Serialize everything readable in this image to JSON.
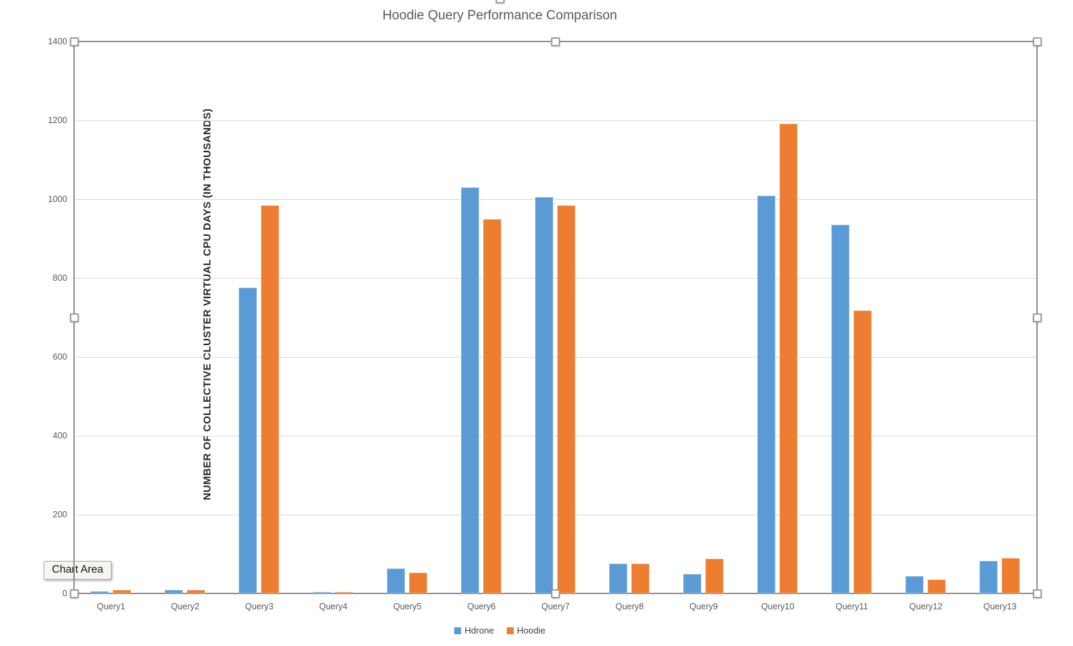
{
  "chart_data": {
    "type": "bar",
    "title": "Hoodie Query Performance Comparison",
    "ylabel": "NUMBER OF COLLECTIVE CLUSTER VIRTUAL CPU DAYS (IN THOUSANDS)",
    "xlabel": "",
    "categories": [
      "Query1",
      "Query2",
      "Query3",
      "Query4",
      "Query5",
      "Query6",
      "Query7",
      "Query8",
      "Query9",
      "Query10",
      "Query11",
      "Query12",
      "Query13"
    ],
    "series": [
      {
        "name": "Hdrone",
        "color": "#5B9BD5",
        "values": [
          5,
          8,
          775,
          4,
          64,
          1030,
          1005,
          75,
          50,
          1008,
          935,
          44,
          82
        ]
      },
      {
        "name": "Hoodie",
        "color": "#ED7D31",
        "values": [
          8,
          8,
          985,
          4,
          52,
          950,
          985,
          75,
          87,
          1192,
          717,
          35,
          89
        ]
      }
    ],
    "ylim": [
      0,
      1400
    ],
    "yticks": [
      0,
      200,
      400,
      600,
      800,
      1000,
      1200,
      1400
    ],
    "grid": "horizontal",
    "legend_position": "bottom-center"
  },
  "ui": {
    "tooltip": {
      "label": "Chart Area"
    },
    "selection": {
      "handles": [
        "top-left",
        "top-center",
        "top-right",
        "middle-left",
        "middle-right",
        "bottom-left",
        "bottom-center",
        "bottom-right",
        "chart-top-center-partial"
      ]
    }
  },
  "colors": {
    "grid": "#d9d9d9",
    "frame": "#8f8f8f",
    "title_text": "#595959",
    "tick_text": "#595959"
  }
}
